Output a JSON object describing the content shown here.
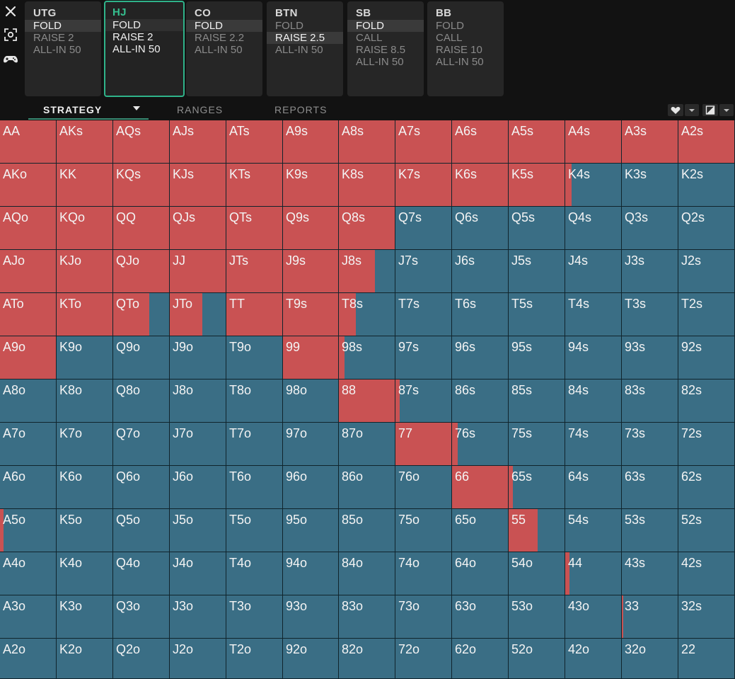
{
  "app": {
    "colors": {
      "raise": "#c95253",
      "fold": "#3a6e85",
      "active_accent": "#35c08f"
    }
  },
  "sidebar": {
    "icons": [
      "close-icon",
      "screenshot-icon",
      "gamepad-icon"
    ]
  },
  "positions": [
    {
      "name": "UTG",
      "actions": [
        "FOLD",
        "RAISE 2",
        "ALL-IN 50"
      ],
      "selected": 0
    },
    {
      "name": "HJ",
      "actions": [
        "FOLD",
        "RAISE 2",
        "ALL-IN 50"
      ],
      "selected": 0
    },
    {
      "name": "CO",
      "actions": [
        "FOLD",
        "RAISE 2.2",
        "ALL-IN 50"
      ],
      "selected": 0
    },
    {
      "name": "BTN",
      "actions": [
        "FOLD",
        "RAISE 2.5",
        "ALL-IN 50"
      ],
      "selected": 1
    },
    {
      "name": "SB",
      "actions": [
        "FOLD",
        "CALL",
        "RAISE 8.5",
        "ALL-IN 50"
      ],
      "selected": 0
    },
    {
      "name": "BB",
      "actions": [
        "FOLD",
        "CALL",
        "RAISE 10",
        "ALL-IN 50"
      ],
      "selected": -1
    }
  ],
  "tabs": {
    "strategy": "STRATEGY",
    "ranges": "RANGES",
    "reports": "REPORTS"
  },
  "toolbar_icons": [
    "heart-icon",
    "chevron-down-icon",
    "contrast-icon",
    "chevron-down-icon"
  ],
  "grid": {
    "rows": [
      [
        "AA",
        "AKs",
        "AQs",
        "AJs",
        "ATs",
        "A9s",
        "A8s",
        "A7s",
        "A6s",
        "A5s",
        "A4s",
        "A3s",
        "A2s"
      ],
      [
        "AKo",
        "KK",
        "KQs",
        "KJs",
        "KTs",
        "K9s",
        "K8s",
        "K7s",
        "K6s",
        "K5s",
        "K4s",
        "K3s",
        "K2s"
      ],
      [
        "AQo",
        "KQo",
        "QQ",
        "QJs",
        "QTs",
        "Q9s",
        "Q8s",
        "Q7s",
        "Q6s",
        "Q5s",
        "Q4s",
        "Q3s",
        "Q2s"
      ],
      [
        "AJo",
        "KJo",
        "QJo",
        "JJ",
        "JTs",
        "J9s",
        "J8s",
        "J7s",
        "J6s",
        "J5s",
        "J4s",
        "J3s",
        "J2s"
      ],
      [
        "ATo",
        "KTo",
        "QTo",
        "JTo",
        "TT",
        "T9s",
        "T8s",
        "T7s",
        "T6s",
        "T5s",
        "T4s",
        "T3s",
        "T2s"
      ],
      [
        "A9o",
        "K9o",
        "Q9o",
        "J9o",
        "T9o",
        "99",
        "98s",
        "97s",
        "96s",
        "95s",
        "94s",
        "93s",
        "92s"
      ],
      [
        "A8o",
        "K8o",
        "Q8o",
        "J8o",
        "T8o",
        "98o",
        "88",
        "87s",
        "86s",
        "85s",
        "84s",
        "83s",
        "82s"
      ],
      [
        "A7o",
        "K7o",
        "Q7o",
        "J7o",
        "T7o",
        "97o",
        "87o",
        "77",
        "76s",
        "75s",
        "74s",
        "73s",
        "72s"
      ],
      [
        "A6o",
        "K6o",
        "Q6o",
        "J6o",
        "T6o",
        "96o",
        "86o",
        "76o",
        "66",
        "65s",
        "64s",
        "63s",
        "62s"
      ],
      [
        "A5o",
        "K5o",
        "Q5o",
        "J5o",
        "T5o",
        "95o",
        "85o",
        "75o",
        "65o",
        "55",
        "54s",
        "53s",
        "52s"
      ],
      [
        "A4o",
        "K4o",
        "Q4o",
        "J4o",
        "T4o",
        "94o",
        "84o",
        "74o",
        "64o",
        "54o",
        "44",
        "43s",
        "42s"
      ],
      [
        "A3o",
        "K3o",
        "Q3o",
        "J3o",
        "T3o",
        "93o",
        "83o",
        "73o",
        "63o",
        "53o",
        "43o",
        "33",
        "32s"
      ],
      [
        "A2o",
        "K2o",
        "Q2o",
        "J2o",
        "T2o",
        "92o",
        "82o",
        "72o",
        "62o",
        "52o",
        "42o",
        "32o",
        "22"
      ]
    ],
    "raise_freq": [
      [
        1,
        1,
        1,
        1,
        1,
        1,
        1,
        1,
        1,
        1,
        1,
        1,
        1
      ],
      [
        1,
        1,
        1,
        1,
        1,
        1,
        1,
        1,
        1,
        1,
        0.12,
        0,
        0
      ],
      [
        1,
        1,
        1,
        1,
        1,
        1,
        1,
        0,
        0,
        0,
        0,
        0,
        0
      ],
      [
        1,
        1,
        1,
        1,
        1,
        1,
        0.65,
        0,
        0,
        0,
        0,
        0,
        0
      ],
      [
        1,
        1,
        0.65,
        0.58,
        1,
        1,
        0.3,
        0,
        0,
        0,
        0,
        0,
        0
      ],
      [
        1,
        0,
        0,
        0,
        0,
        1,
        0.1,
        0,
        0,
        0,
        0,
        0,
        0
      ],
      [
        0,
        0,
        0,
        0,
        0,
        0,
        1,
        0.08,
        0,
        0,
        0,
        0,
        0
      ],
      [
        0,
        0,
        0,
        0,
        0,
        0,
        0,
        1,
        0.1,
        0,
        0,
        0,
        0
      ],
      [
        0,
        0,
        0,
        0,
        0,
        0,
        0,
        0,
        1,
        0.08,
        0,
        0,
        0
      ],
      [
        0.06,
        0,
        0,
        0,
        0,
        0,
        0,
        0,
        0,
        0.52,
        0,
        0,
        0
      ],
      [
        0,
        0,
        0,
        0,
        0,
        0,
        0,
        0,
        0,
        0,
        0.07,
        0,
        0
      ],
      [
        0,
        0,
        0,
        0,
        0,
        0,
        0,
        0,
        0,
        0,
        0,
        0.02,
        0
      ],
      [
        0,
        0,
        0,
        0,
        0,
        0,
        0,
        0,
        0,
        0,
        0,
        0,
        0
      ]
    ]
  }
}
